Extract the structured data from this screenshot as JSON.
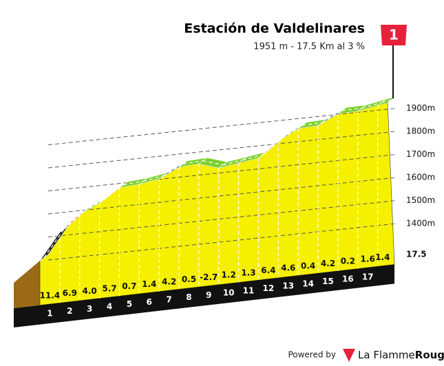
{
  "chart_data": {
    "type": "profile",
    "title": "Estación de Valdelinares",
    "subtitle": "1951 m - 17.5 Km al 3 %",
    "flag": "1",
    "start_elevation": 1424,
    "categories": [
      1,
      2,
      3,
      4,
      5,
      6,
      7,
      8,
      9,
      10,
      11,
      12,
      13,
      14,
      15,
      16,
      17,
      17.5
    ],
    "values": [
      11.4,
      6.9,
      4.0,
      5.7,
      0.7,
      1.4,
      4.2,
      0.5,
      -2.7,
      1.2,
      1.3,
      6.4,
      4.6,
      0.4,
      4.2,
      0.2,
      1.6,
      1.4
    ],
    "value_labels": [
      "11.4",
      "6.9",
      "4.0",
      "5.7",
      "0.7",
      "1.4",
      "4.2",
      "0.5",
      "-2.7",
      "1.2",
      "1.3",
      "6.4",
      "4.6",
      "0.4",
      "4.2",
      "0.2",
      "1.6",
      "1.4"
    ],
    "colors": [
      "#222222",
      "#e8213a",
      "#7bd12e",
      "#1a5a8c",
      "#7bd12e",
      "#7bd12e",
      "#1a5a8c",
      "#7bd12e",
      "#7bd12e",
      "#7bd12e",
      "#7bd12e",
      "#e8213a",
      "#1a5a8c",
      "#7bd12e",
      "#1a5a8c",
      "#7bd12e",
      "#7bd12e",
      "#7bd12e"
    ],
    "ylim": [
      1400,
      1900
    ],
    "yticks": [
      {
        "value": 1400,
        "label": "1400m"
      },
      {
        "value": 1500,
        "label": "1500m"
      },
      {
        "value": 1600,
        "label": "1600m"
      },
      {
        "value": 1700,
        "label": "1700m"
      },
      {
        "value": 1800,
        "label": "1800m"
      },
      {
        "value": 1900,
        "label": "1900m"
      }
    ],
    "grid": true
  },
  "footer": {
    "powered_by": "Powered by",
    "brand": "La Flamme",
    "brand_bold": "Rouge"
  }
}
